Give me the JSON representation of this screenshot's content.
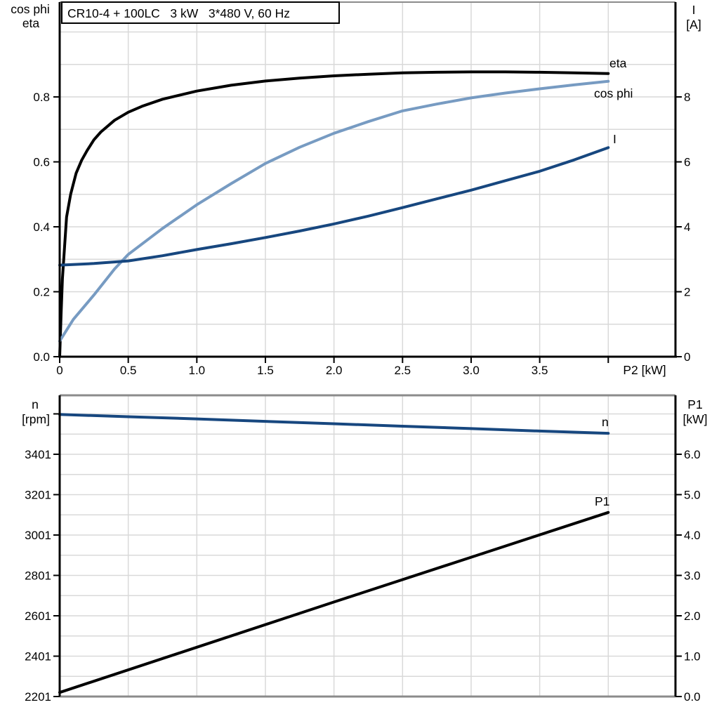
{
  "colors": {
    "curve_black": "#000000",
    "cos_phi_blue": "#779bc2",
    "navy_blue": "#17477f",
    "label_blue": "#1568b0",
    "grid_gray": "#d9d9d9",
    "frame_gray": "#8b8b8b",
    "background": "#ffffff"
  },
  "chart_data": [
    {
      "type": "line",
      "panel": "top",
      "title": "CR10-4 + 100LC   3 kW   3*480 V, 60 Hz",
      "x_axis": {
        "label": "P2 [kW]",
        "min": 0,
        "max": 4.49,
        "grid_step": 0.5,
        "grid_max": 4.0,
        "ticks": [
          {
            "v": 0,
            "label": "0"
          },
          {
            "v": 0.5,
            "label": "0.5"
          },
          {
            "v": 1,
            "label": "1.0"
          },
          {
            "v": 1.5,
            "label": "1.5"
          },
          {
            "v": 2,
            "label": "2.0"
          },
          {
            "v": 2.5,
            "label": "2.5"
          },
          {
            "v": 3,
            "label": "3.0"
          },
          {
            "v": 3.5,
            "label": "3.5"
          },
          {
            "v": 4,
            "label": ""
          }
        ]
      },
      "y_left": {
        "title_lines": [
          "cos phi",
          "eta"
        ],
        "min": 0,
        "max": 1.092,
        "grid_step": 0.1,
        "grid_max": 1.0,
        "ticks": [
          {
            "v": 0,
            "label": "0.0"
          },
          {
            "v": 0.2,
            "label": "0.2"
          },
          {
            "v": 0.4,
            "label": "0.4"
          },
          {
            "v": 0.6,
            "label": "0.6"
          },
          {
            "v": 0.8,
            "label": "0.8"
          }
        ]
      },
      "y_right": {
        "title_lines": [
          "I",
          "[A]"
        ],
        "min": 0,
        "max": 10.92,
        "ticks": [
          {
            "v": 0,
            "label": "0"
          },
          {
            "v": 2,
            "label": "2"
          },
          {
            "v": 4,
            "label": "4"
          },
          {
            "v": 6,
            "label": "6"
          },
          {
            "v": 8,
            "label": "8"
          }
        ]
      },
      "series": [
        {
          "name": "eta",
          "axis": "left",
          "color": "#000000",
          "x": [
            0,
            0.01,
            0.02,
            0.05,
            0.08,
            0.12,
            0.16,
            0.2,
            0.25,
            0.3,
            0.4,
            0.5,
            0.6,
            0.75,
            1.0,
            1.25,
            1.5,
            1.75,
            2.0,
            2.25,
            2.5,
            2.75,
            3.0,
            3.25,
            3.5,
            3.75,
            4.0
          ],
          "y": [
            0,
            0.13,
            0.24,
            0.43,
            0.5,
            0.565,
            0.605,
            0.635,
            0.668,
            0.692,
            0.728,
            0.753,
            0.771,
            0.793,
            0.818,
            0.836,
            0.849,
            0.858,
            0.865,
            0.87,
            0.874,
            0.876,
            0.877,
            0.877,
            0.876,
            0.874,
            0.872
          ]
        },
        {
          "name": "cos phi",
          "axis": "left",
          "color": "#779bc2",
          "x": [
            0,
            0.1,
            0.25,
            0.4,
            0.5,
            0.75,
            1.0,
            1.25,
            1.5,
            1.75,
            2.0,
            2.25,
            2.5,
            2.75,
            3.0,
            3.25,
            3.5,
            3.75,
            4.0
          ],
          "y": [
            0.048,
            0.115,
            0.19,
            0.27,
            0.315,
            0.395,
            0.468,
            0.533,
            0.595,
            0.645,
            0.688,
            0.724,
            0.757,
            0.778,
            0.797,
            0.812,
            0.825,
            0.837,
            0.848
          ]
        },
        {
          "name": "I",
          "axis": "right",
          "color": "#17477f",
          "x": [
            0,
            0.25,
            0.5,
            0.75,
            1.0,
            1.25,
            1.5,
            1.75,
            2.0,
            2.25,
            2.5,
            2.75,
            3.0,
            3.25,
            3.5,
            3.75,
            4.0
          ],
          "y": [
            2.82,
            2.87,
            2.95,
            3.11,
            3.3,
            3.48,
            3.67,
            3.87,
            4.09,
            4.33,
            4.59,
            4.86,
            5.13,
            5.42,
            5.71,
            6.06,
            6.44
          ]
        }
      ]
    },
    {
      "type": "line",
      "panel": "bottom",
      "x_axis": {
        "label": "",
        "min": 0,
        "max": 4.49,
        "grid_step": 0.5,
        "grid_max": 4.0,
        "ticks": []
      },
      "y_left": {
        "title_lines": [
          "n",
          "[rpm]"
        ],
        "min": 2201,
        "max": 3693,
        "grid_step": 100,
        "grid_max": 3601,
        "ticks": [
          {
            "v": 2201,
            "label": "2201"
          },
          {
            "v": 2401,
            "label": "2401"
          },
          {
            "v": 2601,
            "label": "2601"
          },
          {
            "v": 2801,
            "label": "2801"
          },
          {
            "v": 3001,
            "label": "3001"
          },
          {
            "v": 3201,
            "label": "3201"
          },
          {
            "v": 3401,
            "label": "3401"
          },
          {
            "v": 3601,
            "label": ""
          }
        ]
      },
      "y_right": {
        "title_lines": [
          "P1",
          "[kW]"
        ],
        "min": 0,
        "max": 7.46,
        "ticks": [
          {
            "v": 0,
            "label": "0.0"
          },
          {
            "v": 1,
            "label": "1.0"
          },
          {
            "v": 2,
            "label": "2.0"
          },
          {
            "v": 3,
            "label": "3.0"
          },
          {
            "v": 4,
            "label": "4.0"
          },
          {
            "v": 5,
            "label": "5.0"
          },
          {
            "v": 6,
            "label": "6.0"
          }
        ]
      },
      "series": [
        {
          "name": "n",
          "axis": "left",
          "color": "#17477f",
          "x": [
            0,
            0.5,
            1.0,
            1.5,
            2.0,
            2.5,
            3.0,
            3.5,
            4.0
          ],
          "y": [
            3598,
            3587,
            3576,
            3564,
            3552,
            3540,
            3528,
            3516,
            3505
          ]
        },
        {
          "name": "P1",
          "axis": "right",
          "color": "#000000",
          "x": [
            0,
            1.0,
            2.0,
            3.0,
            4.0
          ],
          "y": [
            0.1,
            1.22,
            2.34,
            3.45,
            4.56
          ]
        }
      ]
    }
  ]
}
